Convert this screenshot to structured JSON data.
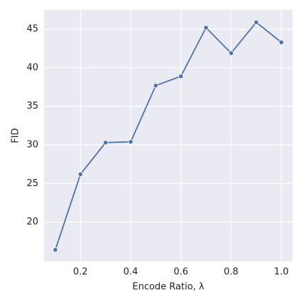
{
  "chart_data": {
    "type": "line",
    "xlabel": "Encode Ratio, λ",
    "ylabel": "FID",
    "x": [
      0.1,
      0.2,
      0.3,
      0.4,
      0.5,
      0.6,
      0.7,
      0.8,
      0.9,
      1.0
    ],
    "series": [
      {
        "color": "#4c72b0",
        "values": [
          16.4,
          26.2,
          30.3,
          30.4,
          37.7,
          38.9,
          45.2,
          41.9,
          45.9,
          43.3
        ]
      }
    ],
    "xlim": [
      0.055,
      1.045
    ],
    "xticks": [
      0.2,
      0.4,
      0.6,
      0.8,
      {
        "value": 1,
        "label": "1.0"
      }
    ],
    "ylim": [
      14.9,
      47.5
    ],
    "yticks": [
      20,
      25,
      30,
      35,
      40,
      45
    ],
    "grid": true
  }
}
